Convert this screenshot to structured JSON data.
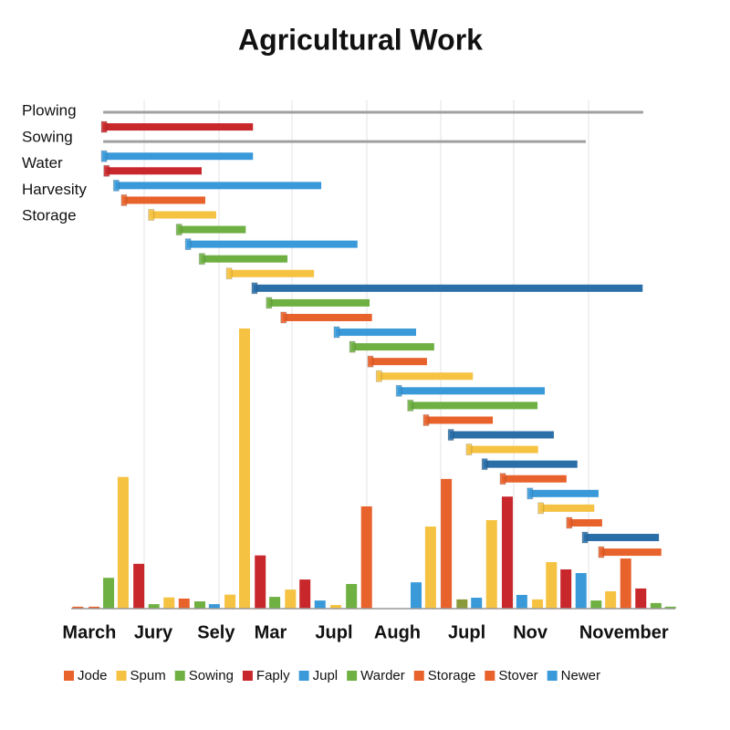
{
  "chart_data": {
    "type": "gantt",
    "title": "Agricultural Work",
    "row_labels": [
      "Plowing",
      "Sowing",
      "Water",
      "Harvesity",
      "Storage"
    ],
    "xlim": [
      0,
      100
    ],
    "xticks": [
      {
        "value": 3,
        "label": "March"
      },
      {
        "value": 13.6,
        "label": "Jury"
      },
      {
        "value": 24,
        "label": "Sely"
      },
      {
        "value": 33,
        "label": "Mar"
      },
      {
        "value": 43.5,
        "label": "Jupl"
      },
      {
        "value": 54,
        "label": "Augh"
      },
      {
        "value": 65.5,
        "label": "Jupl"
      },
      {
        "value": 76,
        "label": "Nov"
      },
      {
        "value": 91.5,
        "label": "November"
      }
    ],
    "ylim": [
      0,
      100
    ],
    "tasks": [
      {
        "start": 5.3,
        "end": 94.7,
        "color": "#a0a0a0",
        "thin": true
      },
      {
        "start": 5.3,
        "end": 30.1,
        "color": "#c8282c"
      },
      {
        "start": 5.3,
        "end": 85.2,
        "color": "#a0a0a0",
        "thin": true
      },
      {
        "start": 5.3,
        "end": 30.1,
        "color": "#3a9ad9"
      },
      {
        "start": 5.7,
        "end": 21.6,
        "color": "#c8282c"
      },
      {
        "start": 7.3,
        "end": 41.4,
        "color": "#3a9ad9"
      },
      {
        "start": 8.6,
        "end": 22.2,
        "color": "#e8622c"
      },
      {
        "start": 13.1,
        "end": 24.0,
        "color": "#f5c242"
      },
      {
        "start": 17.7,
        "end": 28.9,
        "color": "#6fb043"
      },
      {
        "start": 19.2,
        "end": 47.4,
        "color": "#3a9ad9"
      },
      {
        "start": 21.5,
        "end": 35.8,
        "color": "#6fb043"
      },
      {
        "start": 26.0,
        "end": 40.2,
        "color": "#f5c242"
      },
      {
        "start": 30.2,
        "end": 94.6,
        "color": "#2a6fa8"
      },
      {
        "start": 32.6,
        "end": 49.4,
        "color": "#6fb043"
      },
      {
        "start": 35.0,
        "end": 49.8,
        "color": "#e8622c"
      },
      {
        "start": 43.8,
        "end": 57.1,
        "color": "#3a9ad9"
      },
      {
        "start": 46.4,
        "end": 60.1,
        "color": "#6fb043"
      },
      {
        "start": 49.4,
        "end": 58.9,
        "color": "#e8622c"
      },
      {
        "start": 50.8,
        "end": 66.5,
        "color": "#f5c242"
      },
      {
        "start": 54.1,
        "end": 78.4,
        "color": "#3a9ad9"
      },
      {
        "start": 56.0,
        "end": 77.2,
        "color": "#6fb043"
      },
      {
        "start": 58.6,
        "end": 69.8,
        "color": "#e8622c"
      },
      {
        "start": 62.7,
        "end": 79.9,
        "color": "#2a6fa8"
      },
      {
        "start": 65.7,
        "end": 77.3,
        "color": "#f5c242"
      },
      {
        "start": 68.3,
        "end": 83.8,
        "color": "#2a6fa8"
      },
      {
        "start": 71.3,
        "end": 82.0,
        "color": "#e8622c"
      },
      {
        "start": 75.8,
        "end": 87.3,
        "color": "#3a9ad9"
      },
      {
        "start": 77.6,
        "end": 86.6,
        "color": "#f5c242"
      },
      {
        "start": 82.3,
        "end": 87.9,
        "color": "#e8622c"
      },
      {
        "start": 84.9,
        "end": 97.3,
        "color": "#2a6fa8"
      },
      {
        "start": 87.6,
        "end": 97.7,
        "color": "#e8622c"
      }
    ],
    "bars": [
      {
        "x": 1.1,
        "value": 0.7,
        "color": "#e8622c"
      },
      {
        "x": 3.8,
        "value": 0.7,
        "color": "#e8622c"
      },
      {
        "x": 6.2,
        "value": 11,
        "color": "#6fb043"
      },
      {
        "x": 8.6,
        "value": 47,
        "color": "#f5c242"
      },
      {
        "x": 11.2,
        "value": 16,
        "color": "#c8282c"
      },
      {
        "x": 13.7,
        "value": 1.6,
        "color": "#6fb043"
      },
      {
        "x": 16.2,
        "value": 4,
        "color": "#f5c242"
      },
      {
        "x": 18.7,
        "value": 3.6,
        "color": "#e8622c"
      },
      {
        "x": 21.3,
        "value": 2.6,
        "color": "#6fb043"
      },
      {
        "x": 23.7,
        "value": 1.6,
        "color": "#3a9ad9"
      },
      {
        "x": 26.3,
        "value": 5,
        "color": "#f5c242"
      },
      {
        "x": 28.7,
        "value": 100,
        "color": "#f5c242"
      },
      {
        "x": 31.3,
        "value": 19,
        "color": "#c8282c"
      },
      {
        "x": 33.7,
        "value": 4.2,
        "color": "#6fb043"
      },
      {
        "x": 36.3,
        "value": 6.8,
        "color": "#f5c242"
      },
      {
        "x": 38.7,
        "value": 10.4,
        "color": "#c8282c"
      },
      {
        "x": 41.2,
        "value": 2.9,
        "color": "#3a9ad9"
      },
      {
        "x": 43.8,
        "value": 1.3,
        "color": "#f5c242"
      },
      {
        "x": 46.4,
        "value": 8.8,
        "color": "#6fb043"
      },
      {
        "x": 48.9,
        "value": 36.5,
        "color": "#e8622c"
      },
      {
        "x": 57.1,
        "value": 9.4,
        "color": "#3a9ad9"
      },
      {
        "x": 59.5,
        "value": 29.3,
        "color": "#f5c242"
      },
      {
        "x": 62.1,
        "value": 46.3,
        "color": "#e8622c"
      },
      {
        "x": 64.7,
        "value": 3.3,
        "color": "#8a9a3a"
      },
      {
        "x": 67.1,
        "value": 3.9,
        "color": "#3a9ad9"
      },
      {
        "x": 69.6,
        "value": 31.6,
        "color": "#f5c242"
      },
      {
        "x": 72.2,
        "value": 40,
        "color": "#c8282c"
      },
      {
        "x": 74.6,
        "value": 4.9,
        "color": "#3a9ad9"
      },
      {
        "x": 77.2,
        "value": 3.3,
        "color": "#f5c242"
      },
      {
        "x": 79.5,
        "value": 16.6,
        "color": "#f5c242"
      },
      {
        "x": 81.9,
        "value": 14,
        "color": "#c8282c"
      },
      {
        "x": 84.4,
        "value": 12.7,
        "color": "#3a9ad9"
      },
      {
        "x": 86.9,
        "value": 2.9,
        "color": "#6fb043"
      },
      {
        "x": 89.3,
        "value": 6.2,
        "color": "#f5c242"
      },
      {
        "x": 91.8,
        "value": 17.9,
        "color": "#e8622c"
      },
      {
        "x": 94.3,
        "value": 7.2,
        "color": "#c8282c"
      },
      {
        "x": 96.8,
        "value": 2,
        "color": "#6fb043"
      },
      {
        "x": 99.2,
        "value": 0.7,
        "color": "#6fb043"
      }
    ],
    "legend": [
      {
        "name": "Jode",
        "color": "#e8622c"
      },
      {
        "name": "Spum",
        "color": "#f5c242"
      },
      {
        "name": "Sowing",
        "color": "#6fb043"
      },
      {
        "name": "Faply",
        "color": "#c8282c"
      },
      {
        "name": "Jupl",
        "color": "#3a9ad9"
      },
      {
        "name": "Warder",
        "color": "#6fb043"
      },
      {
        "name": "Storage",
        "color": "#e8622c"
      },
      {
        "name": "Stover",
        "color": "#e8622c"
      },
      {
        "name": "Newer",
        "color": "#3a9ad9"
      }
    ]
  }
}
